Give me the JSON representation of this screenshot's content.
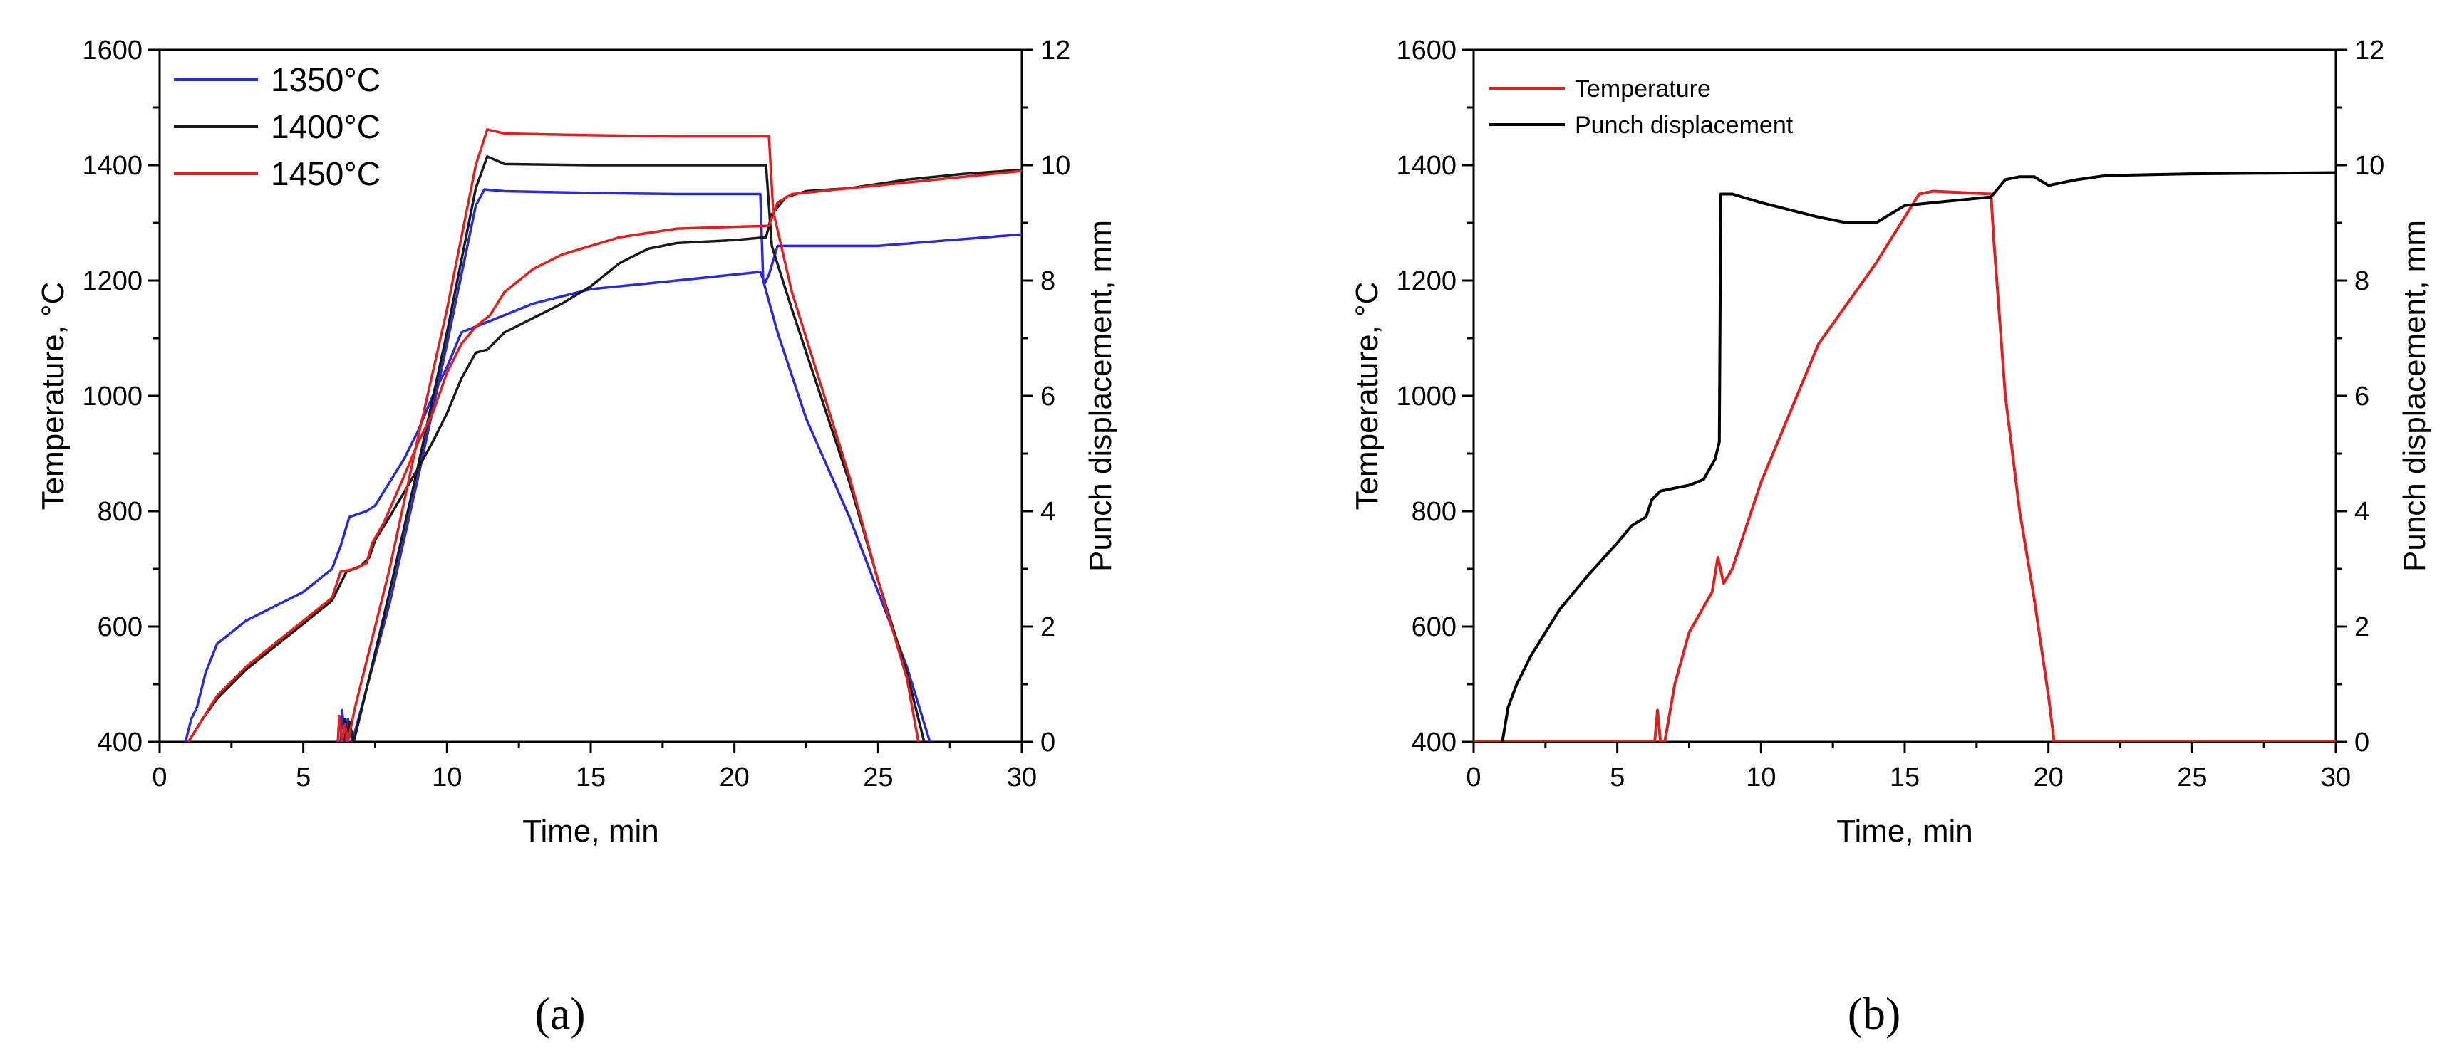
{
  "chart_data": [
    {
      "id": "a",
      "type": "line",
      "caption": "(a)",
      "xlabel": "Time, min",
      "ylabel": "Temperature, °C",
      "y2label": "Punch displacement, mm",
      "xlim": [
        0,
        30
      ],
      "ylim": [
        400,
        1600
      ],
      "y2lim": [
        0,
        12
      ],
      "xticks": [
        0,
        5,
        10,
        15,
        20,
        25,
        30
      ],
      "yticks": [
        400,
        600,
        800,
        1000,
        1200,
        1400,
        1600
      ],
      "y2ticks": [
        0,
        2,
        4,
        6,
        8,
        10,
        12
      ],
      "grid": false,
      "legend_position": "top-left",
      "series": [
        {
          "name": "1350°C",
          "color": "#2b2bd6",
          "temperature": [
            [
              6.3,
              400
            ],
            [
              6.35,
              455
            ],
            [
              6.45,
              400
            ],
            [
              6.55,
              440
            ],
            [
              6.7,
              400
            ],
            [
              7,
              455
            ],
            [
              8,
              640
            ],
            [
              9,
              860
            ],
            [
              10,
              1090
            ],
            [
              11,
              1330
            ],
            [
              11.3,
              1358
            ],
            [
              12,
              1355
            ],
            [
              15,
              1352
            ],
            [
              18,
              1350
            ],
            [
              20.9,
              1350
            ],
            [
              21,
              1200
            ],
            [
              21.5,
              1110
            ],
            [
              22.5,
              960
            ],
            [
              24,
              790
            ],
            [
              25,
              660
            ],
            [
              26,
              530
            ],
            [
              26.8,
              400
            ]
          ],
          "displacement": [
            [
              0.9,
              0
            ],
            [
              1.1,
              0.4
            ],
            [
              1.3,
              0.6
            ],
            [
              1.6,
              1.2
            ],
            [
              2,
              1.7
            ],
            [
              3,
              2.1
            ],
            [
              5,
              2.6
            ],
            [
              6,
              3.0
            ],
            [
              6.3,
              3.4
            ],
            [
              6.6,
              3.9
            ],
            [
              7.2,
              4.0
            ],
            [
              7.5,
              4.1
            ],
            [
              8,
              4.5
            ],
            [
              8.5,
              4.9
            ],
            [
              9,
              5.4
            ],
            [
              9.5,
              6.0
            ],
            [
              10,
              6.5
            ],
            [
              10.5,
              7.1
            ],
            [
              11,
              7.2
            ],
            [
              12,
              7.4
            ],
            [
              13,
              7.6
            ],
            [
              15,
              7.85
            ],
            [
              18,
              8.0
            ],
            [
              20.9,
              8.15
            ],
            [
              21.05,
              7.95
            ],
            [
              21.2,
              8.1
            ],
            [
              21.5,
              8.6
            ],
            [
              25,
              8.6
            ],
            [
              30,
              8.8
            ]
          ]
        },
        {
          "name": "1400°C",
          "color": "#1a1a1a",
          "temperature": [
            [
              6.4,
              400
            ],
            [
              6.45,
              440
            ],
            [
              6.55,
              400
            ],
            [
              6.6,
              435
            ],
            [
              6.75,
              400
            ],
            [
              7,
              450
            ],
            [
              8,
              660
            ],
            [
              9,
              880
            ],
            [
              10,
              1110
            ],
            [
              11,
              1360
            ],
            [
              11.4,
              1415
            ],
            [
              12,
              1402
            ],
            [
              15,
              1400
            ],
            [
              18,
              1400
            ],
            [
              21.1,
              1400
            ],
            [
              21.3,
              1260
            ],
            [
              22,
              1150
            ],
            [
              23,
              1000
            ],
            [
              24,
              850
            ],
            [
              25,
              680
            ],
            [
              26,
              520
            ],
            [
              26.6,
              400
            ]
          ],
          "displacement": [
            [
              1.0,
              0
            ],
            [
              1.5,
              0.4
            ],
            [
              2,
              0.75
            ],
            [
              3,
              1.25
            ],
            [
              4,
              1.65
            ],
            [
              5,
              2.05
            ],
            [
              6,
              2.45
            ],
            [
              6.3,
              2.75
            ],
            [
              6.5,
              2.95
            ],
            [
              7,
              3.05
            ],
            [
              7.3,
              3.2
            ],
            [
              7.5,
              3.5
            ],
            [
              8,
              3.9
            ],
            [
              9,
              4.75
            ],
            [
              9.5,
              5.2
            ],
            [
              10,
              5.7
            ],
            [
              10.5,
              6.3
            ],
            [
              11,
              6.75
            ],
            [
              11.4,
              6.8
            ],
            [
              12,
              7.1
            ],
            [
              13,
              7.35
            ],
            [
              14,
              7.6
            ],
            [
              15,
              7.9
            ],
            [
              16,
              8.3
            ],
            [
              17,
              8.55
            ],
            [
              18,
              8.65
            ],
            [
              20,
              8.7
            ],
            [
              21.1,
              8.75
            ],
            [
              21.3,
              9.15
            ],
            [
              21.8,
              9.45
            ],
            [
              22.5,
              9.55
            ],
            [
              24,
              9.6
            ],
            [
              26,
              9.75
            ],
            [
              28,
              9.85
            ],
            [
              30,
              9.92
            ]
          ]
        },
        {
          "name": "1450°C",
          "color": "#e0201e",
          "temperature": [
            [
              6.2,
              400
            ],
            [
              6.25,
              445
            ],
            [
              6.35,
              400
            ],
            [
              6.45,
              430
            ],
            [
              6.55,
              400
            ],
            [
              6.8,
              460
            ],
            [
              8,
              700
            ],
            [
              9,
              930
            ],
            [
              10,
              1150
            ],
            [
              11,
              1400
            ],
            [
              11.4,
              1462
            ],
            [
              12,
              1455
            ],
            [
              15,
              1452
            ],
            [
              18,
              1450
            ],
            [
              21.2,
              1450
            ],
            [
              21.35,
              1320
            ],
            [
              22,
              1180
            ],
            [
              23,
              1020
            ],
            [
              24,
              860
            ],
            [
              25,
              680
            ],
            [
              26,
              510
            ],
            [
              26.4,
              400
            ]
          ],
          "displacement": [
            [
              1.0,
              0
            ],
            [
              1.5,
              0.4
            ],
            [
              2,
              0.8
            ],
            [
              3,
              1.3
            ],
            [
              4,
              1.7
            ],
            [
              5,
              2.1
            ],
            [
              6,
              2.5
            ],
            [
              6.3,
              2.95
            ],
            [
              6.8,
              3.0
            ],
            [
              7.2,
              3.1
            ],
            [
              7.4,
              3.45
            ],
            [
              7.8,
              3.8
            ],
            [
              8.5,
              4.6
            ],
            [
              9,
              5.2
            ],
            [
              9.5,
              5.7
            ],
            [
              10,
              6.4
            ],
            [
              10.5,
              6.9
            ],
            [
              11,
              7.2
            ],
            [
              11.5,
              7.4
            ],
            [
              12,
              7.8
            ],
            [
              13,
              8.2
            ],
            [
              14,
              8.45
            ],
            [
              16,
              8.75
            ],
            [
              18,
              8.9
            ],
            [
              21.2,
              8.95
            ],
            [
              21.5,
              9.35
            ],
            [
              22,
              9.5
            ],
            [
              23,
              9.55
            ],
            [
              26,
              9.7
            ],
            [
              30,
              9.9
            ]
          ]
        }
      ]
    },
    {
      "id": "b",
      "type": "line",
      "caption": "(b)",
      "xlabel": "Time, min",
      "ylabel": "Temperature, °C",
      "y2label": "Punch displacement, mm",
      "xlim": [
        0,
        30
      ],
      "ylim": [
        400,
        1600
      ],
      "y2lim": [
        0,
        12
      ],
      "xticks": [
        0,
        5,
        10,
        15,
        20,
        25,
        30
      ],
      "yticks": [
        400,
        600,
        800,
        1000,
        1200,
        1400,
        1600
      ],
      "y2ticks": [
        0,
        2,
        4,
        6,
        8,
        10,
        12
      ],
      "grid": false,
      "legend_position": "top-left",
      "series": [
        {
          "name": "Temperature",
          "color": "#e0201e",
          "axis": "left",
          "points": [
            [
              0,
              400
            ],
            [
              6.3,
              400
            ],
            [
              6.4,
              455
            ],
            [
              6.5,
              400
            ],
            [
              6.65,
              400
            ],
            [
              7,
              500
            ],
            [
              7.5,
              590
            ],
            [
              8.3,
              660
            ],
            [
              8.5,
              720
            ],
            [
              8.7,
              675
            ],
            [
              9,
              700
            ],
            [
              10,
              850
            ],
            [
              12,
              1090
            ],
            [
              14,
              1230
            ],
            [
              15.5,
              1350
            ],
            [
              16,
              1355
            ],
            [
              18,
              1350
            ],
            [
              18.1,
              1270
            ],
            [
              18.5,
              1000
            ],
            [
              19,
              800
            ],
            [
              19.5,
              650
            ],
            [
              20,
              480
            ],
            [
              20.2,
              400
            ],
            [
              30,
              400
            ]
          ]
        },
        {
          "name": "Punch displacement",
          "color": "#000000",
          "axis": "right",
          "points": [
            [
              1.0,
              0
            ],
            [
              1.2,
              0.6
            ],
            [
              1.5,
              1.0
            ],
            [
              2,
              1.5
            ],
            [
              3,
              2.3
            ],
            [
              4,
              2.9
            ],
            [
              5,
              3.45
            ],
            [
              5.5,
              3.75
            ],
            [
              6,
              3.9
            ],
            [
              6.2,
              4.2
            ],
            [
              6.5,
              4.35
            ],
            [
              7,
              4.4
            ],
            [
              7.5,
              4.45
            ],
            [
              8,
              4.55
            ],
            [
              8.4,
              4.9
            ],
            [
              8.55,
              5.2
            ],
            [
              8.6,
              9.5
            ],
            [
              9,
              9.5
            ],
            [
              10,
              9.35
            ],
            [
              12,
              9.1
            ],
            [
              13,
              9.0
            ],
            [
              14,
              9.0
            ],
            [
              14.5,
              9.15
            ],
            [
              15,
              9.3
            ],
            [
              16,
              9.35
            ],
            [
              17,
              9.4
            ],
            [
              18,
              9.45
            ],
            [
              18.5,
              9.75
            ],
            [
              19,
              9.8
            ],
            [
              19.5,
              9.8
            ],
            [
              20,
              9.65
            ],
            [
              21,
              9.75
            ],
            [
              22,
              9.82
            ],
            [
              25,
              9.85
            ],
            [
              30,
              9.87
            ]
          ]
        }
      ]
    }
  ]
}
